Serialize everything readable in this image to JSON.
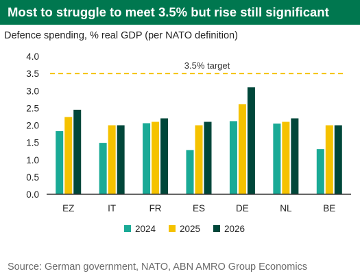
{
  "chart_data": {
    "type": "bar",
    "title": "Most to struggle to meet 3.5% but rise still significant",
    "subtitle": "Defence spending, % real GDP (per NATO definition)",
    "categories": [
      "EZ",
      "IT",
      "FR",
      "ES",
      "DE",
      "NL",
      "BE"
    ],
    "series": [
      {
        "name": "2024",
        "color": "#1aaa96",
        "values": [
          1.83,
          1.49,
          2.06,
          1.28,
          2.12,
          2.05,
          1.31
        ]
      },
      {
        "name": "2025",
        "color": "#f5c200",
        "values": [
          2.24,
          2.0,
          2.1,
          2.0,
          2.61,
          2.1,
          2.0
        ]
      },
      {
        "name": "2026",
        "color": "#00473a",
        "values": [
          2.45,
          2.0,
          2.2,
          2.1,
          3.1,
          2.2,
          2.0
        ]
      }
    ],
    "yticks": [
      "0.0",
      "0.5",
      "1.0",
      "1.5",
      "2.0",
      "2.5",
      "3.0",
      "3.5",
      "4.0"
    ],
    "ylim": [
      0,
      4
    ],
    "grid": false,
    "target": {
      "value": 3.5,
      "label": "3.5% target",
      "color": "#f5c200"
    },
    "legend_position": "bottom"
  },
  "source": "Source: German government, NATO, ABN AMRO Group Economics"
}
